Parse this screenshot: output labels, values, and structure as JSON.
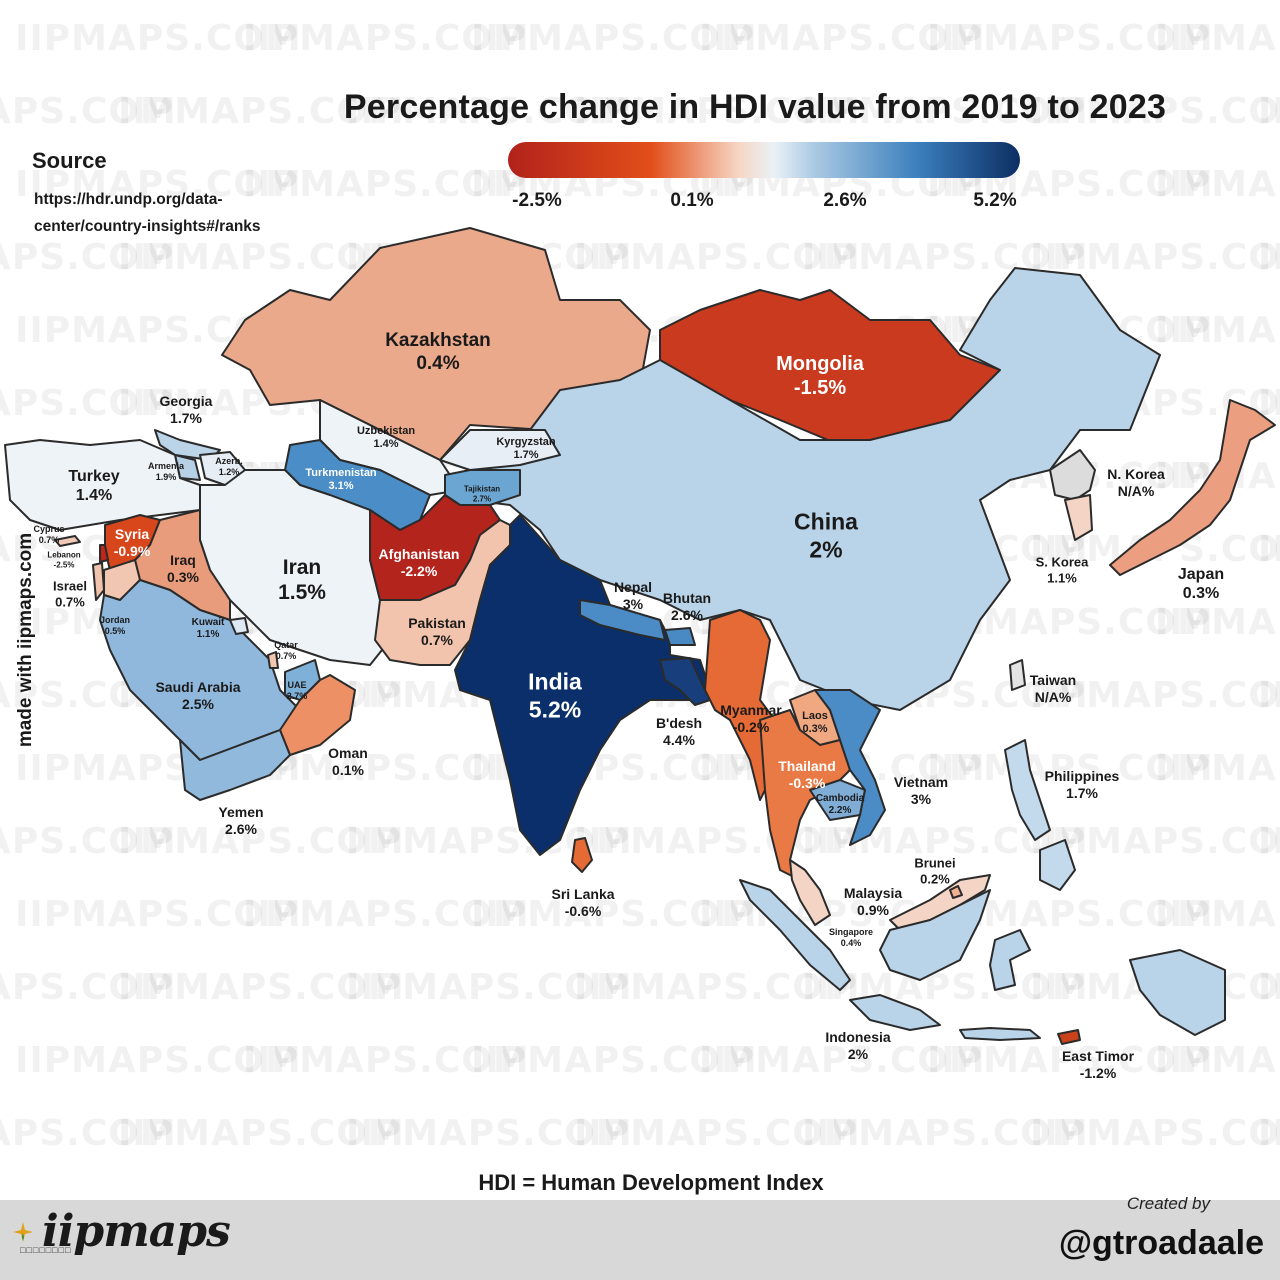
{
  "title": "Percentage change in HDI value from 2019 to 2023",
  "legend": {
    "ticks": [
      "-2.5%",
      "0.1%",
      "2.6%",
      "5.2%"
    ],
    "colors": [
      "#b2221b",
      "#e24f1a",
      "#f6d6c3",
      "#eaf1f7",
      "#a9c9e2",
      "#3b7fbd",
      "#0d2e63"
    ]
  },
  "source": {
    "title": "Source",
    "url": "https://hdr.undp.org/data-center/country-insights#/ranks"
  },
  "made_with": "made with iipmaps.com",
  "footnote": "HDI = Human Development Index",
  "footer": {
    "logo_text": "iipmaps",
    "logo_tagline": "□□□□□□□□",
    "created_by": "Created by",
    "handle": "@gtroadaale"
  },
  "watermark_text": "IIPMAPS.COM",
  "watermark_short": "MAPS",
  "countries": [
    {
      "name": "Kazakhstan",
      "value": "0.4%"
    },
    {
      "name": "Mongolia",
      "value": "-1.5%"
    },
    {
      "name": "China",
      "value": "2%"
    },
    {
      "name": "Georgia",
      "value": "1.7%"
    },
    {
      "name": "Armenia",
      "value": "1.9%"
    },
    {
      "name": "Azerb.",
      "value": "1.2%"
    },
    {
      "name": "Uzbekistan",
      "value": "1.4%"
    },
    {
      "name": "Kyrgyzstan",
      "value": "1.7%"
    },
    {
      "name": "Turkmenistan",
      "value": "3.1%"
    },
    {
      "name": "Tajikistan",
      "value": "2.7%"
    },
    {
      "name": "Turkey",
      "value": "1.4%"
    },
    {
      "name": "Cyprus",
      "value": "0.7%"
    },
    {
      "name": "Lebanon",
      "value": "-2.5%"
    },
    {
      "name": "Syria",
      "value": "-0.9%"
    },
    {
      "name": "Iraq",
      "value": "0.3%"
    },
    {
      "name": "Iran",
      "value": "1.5%"
    },
    {
      "name": "Afghanistan",
      "value": "-2.2%"
    },
    {
      "name": "Israel",
      "value": "0.7%"
    },
    {
      "name": "Jordan",
      "value": "0.5%"
    },
    {
      "name": "Kuwait",
      "value": "1.1%"
    },
    {
      "name": "Qatar",
      "value": "0.7%"
    },
    {
      "name": "UAE",
      "value": "2.7%"
    },
    {
      "name": "Saudi Arabia",
      "value": "2.5%"
    },
    {
      "name": "Oman",
      "value": "0.1%"
    },
    {
      "name": "Yemen",
      "value": "2.6%"
    },
    {
      "name": "Pakistan",
      "value": "0.7%"
    },
    {
      "name": "India",
      "value": "5.2%"
    },
    {
      "name": "Nepal",
      "value": "3%"
    },
    {
      "name": "Bhutan",
      "value": "2.6%"
    },
    {
      "name": "B'desh",
      "value": "4.4%"
    },
    {
      "name": "Sri Lanka",
      "value": "-0.6%"
    },
    {
      "name": "Myanmar",
      "value": "-0.2%"
    },
    {
      "name": "Laos",
      "value": "0.3%"
    },
    {
      "name": "Thailand",
      "value": "-0.3%"
    },
    {
      "name": "Cambodia",
      "value": "2.2%"
    },
    {
      "name": "Vietnam",
      "value": "3%"
    },
    {
      "name": "Malaysia",
      "value": "0.9%"
    },
    {
      "name": "Singapore",
      "value": "0.4%"
    },
    {
      "name": "Brunei",
      "value": "0.2%"
    },
    {
      "name": "Indonesia",
      "value": "2%"
    },
    {
      "name": "East Timor",
      "value": "-1.2%"
    },
    {
      "name": "Philippines",
      "value": "1.7%"
    },
    {
      "name": "Taiwan",
      "value": "N/A%"
    },
    {
      "name": "N. Korea",
      "value": "N/A%"
    },
    {
      "name": "S. Korea",
      "value": "1.1%"
    },
    {
      "name": "Japan",
      "value": "0.3%"
    }
  ]
}
